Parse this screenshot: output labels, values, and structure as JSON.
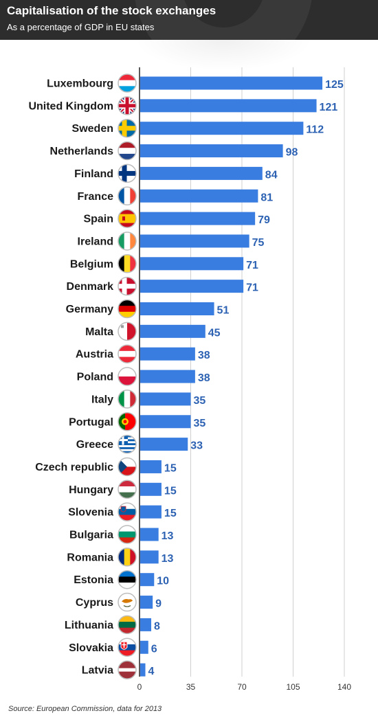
{
  "header": {
    "title": "Capitalisation of the stock exchanges",
    "subtitle": "As a percentage of GDP in EU states"
  },
  "source": "Source: European Commission, data for 2013",
  "colors": {
    "bar": "#3a7de0",
    "value_label": "#2d62b3",
    "header_bg": "#2d2d2d"
  },
  "chart_data": {
    "type": "bar",
    "orientation": "horizontal",
    "title": "Capitalisation of the stock exchanges",
    "subtitle": "As a percentage of GDP in EU states",
    "xlabel": "",
    "ylabel": "",
    "xlim": [
      0,
      140
    ],
    "xticks": [
      0,
      35,
      70,
      105,
      140
    ],
    "grid": true,
    "categories": [
      "Luxembourg",
      "United Kingdom",
      "Sweden",
      "Netherlands",
      "Finland",
      "France",
      "Spain",
      "Ireland",
      "Belgium",
      "Denmark",
      "Germany",
      "Malta",
      "Austria",
      "Poland",
      "Italy",
      "Portugal",
      "Greece",
      "Czech republic",
      "Hungary",
      "Slovenia",
      "Bulgaria",
      "Romania",
      "Estonia",
      "Cyprus",
      "Lithuania",
      "Slovakia",
      "Latvia"
    ],
    "values": [
      125,
      121,
      112,
      98,
      84,
      81,
      79,
      75,
      71,
      71,
      51,
      45,
      38,
      38,
      35,
      35,
      33,
      15,
      15,
      15,
      13,
      13,
      10,
      9,
      8,
      6,
      4
    ],
    "flags": [
      "luxembourg-flag-icon",
      "united-kingdom-flag-icon",
      "sweden-flag-icon",
      "netherlands-flag-icon",
      "finland-flag-icon",
      "france-flag-icon",
      "spain-flag-icon",
      "ireland-flag-icon",
      "belgium-flag-icon",
      "denmark-flag-icon",
      "germany-flag-icon",
      "malta-flag-icon",
      "austria-flag-icon",
      "poland-flag-icon",
      "italy-flag-icon",
      "portugal-flag-icon",
      "greece-flag-icon",
      "czech-republic-flag-icon",
      "hungary-flag-icon",
      "slovenia-flag-icon",
      "bulgaria-flag-icon",
      "romania-flag-icon",
      "estonia-flag-icon",
      "cyprus-flag-icon",
      "lithuania-flag-icon",
      "slovakia-flag-icon",
      "latvia-flag-icon"
    ]
  }
}
